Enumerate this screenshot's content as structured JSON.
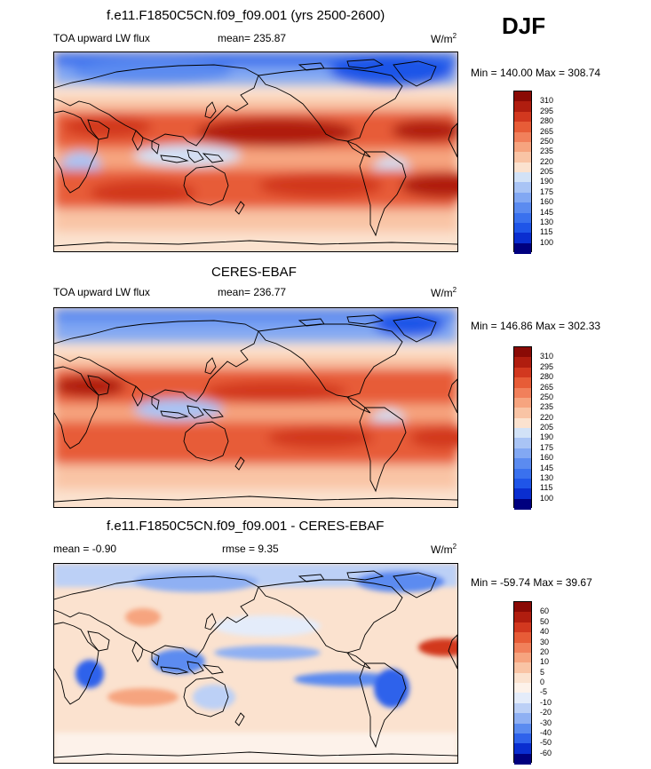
{
  "header": {
    "season": "DJF"
  },
  "panels": [
    {
      "id": "model",
      "title": "f.e11.F1850C5CN.f09_f09.001 (yrs 2500-2600)",
      "variable": "TOA upward LW flux",
      "mean_label": "mean= 235.87",
      "units": "W/m",
      "units_exp": "2",
      "minmax": "Min = 140.00 Max = 308.74",
      "palette": "abs",
      "colorbar": [
        "310",
        "295",
        "280",
        "265",
        "250",
        "235",
        "220",
        "205",
        "190",
        "175",
        "160",
        "145",
        "130",
        "115",
        "100"
      ]
    },
    {
      "id": "obs",
      "title": "CERES-EBAF",
      "variable": "TOA upward LW flux",
      "mean_label": "mean= 236.77",
      "units": "W/m",
      "units_exp": "2",
      "minmax": "Min = 146.86 Max = 302.33",
      "palette": "abs",
      "colorbar": [
        "310",
        "295",
        "280",
        "265",
        "250",
        "235",
        "220",
        "205",
        "190",
        "175",
        "160",
        "145",
        "130",
        "115",
        "100"
      ]
    },
    {
      "id": "diff",
      "title": "f.e11.F1850C5CN.f09_f09.001 - CERES-EBAF",
      "variable": "",
      "mean_label": "mean =  -0.90",
      "rmse_label": "rmse =   9.35",
      "units": "W/m",
      "units_exp": "2",
      "minmax": "Min = -59.74 Max =  39.67",
      "palette": "diff",
      "colorbar": [
        "60",
        "50",
        "40",
        "30",
        "20",
        "10",
        "5",
        "0",
        "-5",
        "-10",
        "-20",
        "-30",
        "-40",
        "-50",
        "-60"
      ]
    }
  ],
  "chart_data": [
    {
      "type": "heatmap",
      "title": "f.e11.F1850C5CN.f09_f09.001 (yrs 2500-2600)",
      "subtitle": "TOA upward LW flux",
      "season": "DJF",
      "mean": 235.87,
      "min": 140.0,
      "max": 308.74,
      "units": "W/m2",
      "levels": [
        100,
        115,
        130,
        145,
        160,
        175,
        190,
        205,
        220,
        235,
        250,
        265,
        280,
        295,
        310
      ],
      "colors": [
        "#00007f",
        "#0a2ed0",
        "#1f55e8",
        "#3a71ee",
        "#5b8bf0",
        "#82a8f3",
        "#a9c4f5",
        "#d2e2f7",
        "#fbe2cf",
        "#f9c4a5",
        "#f6a47f",
        "#f1805b",
        "#e75c37",
        "#d2381f",
        "#b01d0f",
        "#8a0a05"
      ]
    },
    {
      "type": "heatmap",
      "title": "CERES-EBAF",
      "subtitle": "TOA upward LW flux",
      "season": "DJF",
      "mean": 236.77,
      "min": 146.86,
      "max": 302.33,
      "units": "W/m2",
      "levels": [
        100,
        115,
        130,
        145,
        160,
        175,
        190,
        205,
        220,
        235,
        250,
        265,
        280,
        295,
        310
      ]
    },
    {
      "type": "heatmap",
      "title": "f.e11.F1850C5CN.f09_f09.001 - CERES-EBAF",
      "season": "DJF",
      "mean": -0.9,
      "rmse": 9.35,
      "min": -59.74,
      "max": 39.67,
      "units": "W/m2",
      "levels": [
        -60,
        -50,
        -40,
        -30,
        -20,
        -10,
        -5,
        0,
        5,
        10,
        20,
        30,
        40,
        50,
        60
      ]
    }
  ],
  "colors": {
    "abs": [
      "#8a0a05",
      "#b01d0f",
      "#d2381f",
      "#e75c37",
      "#f1805b",
      "#f6a47f",
      "#f9c4a5",
      "#fbe2cf",
      "#d2e2f7",
      "#a9c4f5",
      "#82a8f3",
      "#5b8bf0",
      "#3a71ee",
      "#1f55e8",
      "#0a2ed0",
      "#00007f"
    ],
    "diff": [
      "#8a0a05",
      "#b01d0f",
      "#d2381f",
      "#e75c37",
      "#f1805b",
      "#f6a47f",
      "#f9c4a5",
      "#fbe2cf",
      "#fdf2ea",
      "#e4ecfa",
      "#bcd0f6",
      "#8fb0f3",
      "#5b8bf0",
      "#2f62eb",
      "#0a2ed0",
      "#00007f"
    ]
  }
}
